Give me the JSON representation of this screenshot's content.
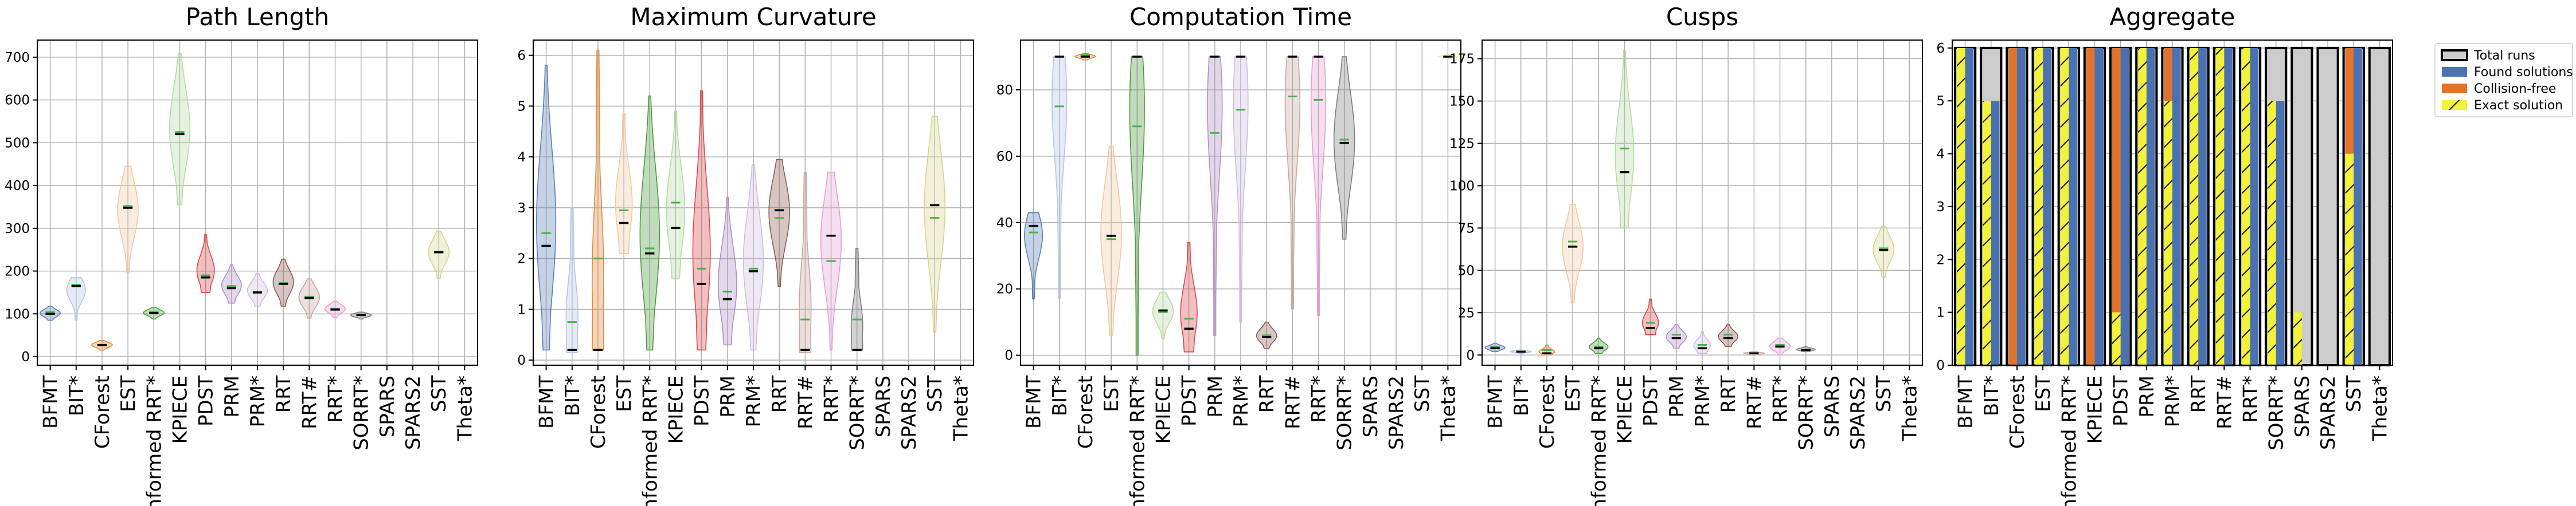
{
  "planners": [
    "BFMT",
    "BIT*",
    "CForest",
    "EST",
    "Informed RRT*",
    "KPIECE",
    "PDST",
    "PRM",
    "PRM*",
    "RRT",
    "RRT#",
    "RRT*",
    "SORRT*",
    "SPARS",
    "SPARS2",
    "SST",
    "Theta*"
  ],
  "colors": {
    "BFMT": "#5b7fb5",
    "BIT*": "#b7c4e6",
    "CForest": "#e38a3c",
    "EST": "#f2c8a0",
    "Informed RRT*": "#4e9a3f",
    "KPIECE": "#b5dba2",
    "PDST": "#d9474a",
    "PRM": "#b08fc7",
    "PRM*": "#cdbde0",
    "RRT": "#8c5a52",
    "RRT#": "#c7a79f",
    "RRT*": "#e59ed3",
    "SORRT*": "#7f7f7f",
    "SST": "#d6d38f",
    "SPARS": "#cccccc",
    "SPARS2": "#cccccc",
    "Theta*": "#eeeeaa",
    "total": "#cccccc",
    "found": "#4a72b3",
    "collision_free": "#e0742c",
    "exact": "#f2f23a"
  },
  "chart_data": [
    {
      "type": "violin",
      "title": "Path Length",
      "ylim": [
        -20,
        740
      ],
      "yticks": [
        0,
        100,
        200,
        300,
        400,
        500,
        600,
        700
      ],
      "series": [
        {
          "name": "BFMT",
          "min": 85,
          "max": 118,
          "mean": 104,
          "median": 100
        },
        {
          "name": "BIT*",
          "min": 85,
          "max": 185,
          "mean": 168,
          "median": 165
        },
        {
          "name": "CForest",
          "min": 15,
          "max": 38,
          "mean": 28,
          "median": 27
        },
        {
          "name": "EST",
          "min": 195,
          "max": 445,
          "mean": 352,
          "median": 348
        },
        {
          "name": "Informed RRT*",
          "min": 88,
          "max": 115,
          "mean": 105,
          "median": 102
        },
        {
          "name": "KPIECE",
          "min": 355,
          "max": 708,
          "mean": 525,
          "median": 520
        },
        {
          "name": "PDST",
          "min": 150,
          "max": 285,
          "mean": 190,
          "median": 185
        },
        {
          "name": "PRM",
          "min": 125,
          "max": 215,
          "mean": 165,
          "median": 160
        },
        {
          "name": "PRM*",
          "min": 118,
          "max": 195,
          "mean": 152,
          "median": 150
        },
        {
          "name": "RRT",
          "min": 118,
          "max": 228,
          "mean": 172,
          "median": 170
        },
        {
          "name": "RRT#",
          "min": 90,
          "max": 182,
          "mean": 140,
          "median": 137
        },
        {
          "name": "RRT*",
          "min": 92,
          "max": 130,
          "mean": 112,
          "median": 110
        },
        {
          "name": "SORRT*",
          "min": 88,
          "max": 104,
          "mean": 98,
          "median": 97
        },
        {
          "name": "SPARS"
        },
        {
          "name": "SPARS2"
        },
        {
          "name": "SST",
          "min": 182,
          "max": 292,
          "mean": 245,
          "median": 244
        },
        {
          "name": "Theta*"
        }
      ]
    },
    {
      "type": "violin",
      "title": "Maximum Curvature",
      "ylim": [
        -0.1,
        6.3
      ],
      "yticks": [
        0,
        1,
        2,
        3,
        4,
        5,
        6
      ],
      "series": [
        {
          "name": "BFMT",
          "min": 0.2,
          "max": 5.8,
          "mean": 2.5,
          "median": 2.25
        },
        {
          "name": "BIT*",
          "min": 0.15,
          "max": 3.0,
          "mean": 0.75,
          "median": 0.2
        },
        {
          "name": "CForest",
          "min": 0.2,
          "max": 6.1,
          "mean": 2.0,
          "median": 0.2
        },
        {
          "name": "EST",
          "min": 2.1,
          "max": 4.85,
          "mean": 2.95,
          "median": 2.7
        },
        {
          "name": "Informed RRT*",
          "min": 0.2,
          "max": 5.2,
          "mean": 2.2,
          "median": 2.1
        },
        {
          "name": "KPIECE",
          "min": 1.6,
          "max": 4.9,
          "mean": 3.1,
          "median": 2.6
        },
        {
          "name": "PDST",
          "min": 0.2,
          "max": 5.3,
          "mean": 1.8,
          "median": 1.5
        },
        {
          "name": "PRM",
          "min": 0.3,
          "max": 3.2,
          "mean": 1.35,
          "median": 1.2
        },
        {
          "name": "PRM*",
          "min": 0.2,
          "max": 3.85,
          "mean": 1.8,
          "median": 1.75
        },
        {
          "name": "RRT",
          "min": 1.45,
          "max": 3.95,
          "mean": 2.8,
          "median": 2.95
        },
        {
          "name": "RRT#",
          "min": 0.15,
          "max": 3.7,
          "mean": 0.8,
          "median": 0.2
        },
        {
          "name": "RRT*",
          "min": 0.2,
          "max": 3.7,
          "mean": 1.95,
          "median": 2.45
        },
        {
          "name": "SORRT*",
          "min": 0.2,
          "max": 2.2,
          "mean": 0.8,
          "median": 0.2
        },
        {
          "name": "SPARS"
        },
        {
          "name": "SPARS2"
        },
        {
          "name": "SST",
          "min": 0.55,
          "max": 4.8,
          "mean": 2.8,
          "median": 3.05
        },
        {
          "name": "Theta*"
        }
      ]
    },
    {
      "type": "violin",
      "title": "Computation Time",
      "ylim": [
        -3,
        95
      ],
      "yticks": [
        0,
        20,
        40,
        60,
        80
      ],
      "series": [
        {
          "name": "BFMT",
          "min": 17,
          "max": 43,
          "mean": 37,
          "median": 39
        },
        {
          "name": "BIT*",
          "min": 17,
          "max": 90,
          "mean": 75,
          "median": 90
        },
        {
          "name": "CForest",
          "min": 89,
          "max": 91,
          "mean": 90.5,
          "median": 90
        },
        {
          "name": "EST",
          "min": 6,
          "max": 63,
          "mean": 35,
          "median": 36
        },
        {
          "name": "Informed RRT*",
          "min": 0,
          "max": 90,
          "mean": 69,
          "median": 90
        },
        {
          "name": "KPIECE",
          "min": 5,
          "max": 19,
          "mean": 13,
          "median": 13.5
        },
        {
          "name": "PDST",
          "min": 1,
          "max": 34,
          "mean": 11,
          "median": 8
        },
        {
          "name": "PRM",
          "min": 6,
          "max": 90,
          "mean": 67,
          "median": 90
        },
        {
          "name": "PRM*",
          "min": 10,
          "max": 90,
          "mean": 74,
          "median": 90
        },
        {
          "name": "RRT",
          "min": 2,
          "max": 10,
          "mean": 6,
          "median": 5.5
        },
        {
          "name": "RRT#",
          "min": 14,
          "max": 90,
          "mean": 78,
          "median": 90
        },
        {
          "name": "RRT*",
          "min": 12,
          "max": 90,
          "mean": 77,
          "median": 90
        },
        {
          "name": "SORRT*",
          "min": 35,
          "max": 90,
          "mean": 65,
          "median": 64
        },
        {
          "name": "SPARS"
        },
        {
          "name": "SPARS2"
        },
        {
          "name": "SST"
        },
        {
          "name": "Theta*",
          "min": 89.5,
          "max": 90.5,
          "mean": 90,
          "median": 90
        }
      ]
    },
    {
      "type": "violin",
      "title": "Cusps",
      "ylim": [
        -6,
        186
      ],
      "yticks": [
        0,
        25,
        50,
        75,
        100,
        125,
        150,
        175
      ],
      "series": [
        {
          "name": "BFMT",
          "min": 2,
          "max": 7,
          "mean": 5,
          "median": 4
        },
        {
          "name": "BIT*",
          "min": 1,
          "max": 3,
          "mean": 2,
          "median": 2
        },
        {
          "name": "CForest",
          "min": 0,
          "max": 6,
          "mean": 3,
          "median": 1
        },
        {
          "name": "EST",
          "min": 31,
          "max": 89,
          "mean": 67,
          "median": 64
        },
        {
          "name": "Informed RRT*",
          "min": 1,
          "max": 10,
          "mean": 5,
          "median": 4
        },
        {
          "name": "KPIECE",
          "min": 75,
          "max": 180,
          "mean": 122,
          "median": 108
        },
        {
          "name": "PDST",
          "min": 12,
          "max": 33,
          "mean": 19,
          "median": 16
        },
        {
          "name": "PRM",
          "min": 4,
          "max": 18,
          "mean": 12,
          "median": 10
        },
        {
          "name": "PRM*",
          "min": 1,
          "max": 14,
          "mean": 6,
          "median": 4
        },
        {
          "name": "RRT",
          "min": 5,
          "max": 18,
          "mean": 12,
          "median": 10
        },
        {
          "name": "RRT#",
          "min": 0,
          "max": 2,
          "mean": 1,
          "median": 1
        },
        {
          "name": "RRT*",
          "min": 0,
          "max": 10,
          "mean": 6,
          "median": 5
        },
        {
          "name": "SORRT*",
          "min": 2,
          "max": 5,
          "mean": 3,
          "median": 3
        },
        {
          "name": "SPARS"
        },
        {
          "name": "SPARS2"
        },
        {
          "name": "SST",
          "min": 46,
          "max": 76,
          "mean": 63,
          "median": 62
        },
        {
          "name": "Theta*"
        }
      ]
    },
    {
      "type": "bar",
      "title": "Aggregate",
      "ylim": [
        0,
        6.15
      ],
      "yticks": [
        0,
        1,
        2,
        3,
        4,
        5,
        6
      ],
      "legend": {
        "position": "outside-right",
        "entries": [
          "Total runs",
          "Found solutions",
          "Collision-free",
          "Exact solution"
        ]
      },
      "series": [
        {
          "name": "Total runs",
          "values": [
            6,
            6,
            6,
            6,
            6,
            6,
            6,
            6,
            6,
            6,
            6,
            6,
            6,
            6,
            6,
            6,
            6
          ]
        },
        {
          "name": "Found solutions",
          "values": [
            6,
            5,
            6,
            6,
            6,
            6,
            6,
            6,
            6,
            6,
            6,
            6,
            5,
            0,
            0,
            6,
            0
          ]
        },
        {
          "name": "Collision-free",
          "values": [
            6,
            5,
            6,
            6,
            6,
            6,
            6,
            6,
            6,
            6,
            6,
            6,
            5,
            1,
            0,
            6,
            0
          ]
        },
        {
          "name": "Exact solution",
          "values": [
            6,
            5,
            0,
            6,
            6,
            0,
            1,
            6,
            5,
            6,
            6,
            6,
            5,
            1,
            0,
            4,
            0
          ]
        }
      ]
    }
  ]
}
